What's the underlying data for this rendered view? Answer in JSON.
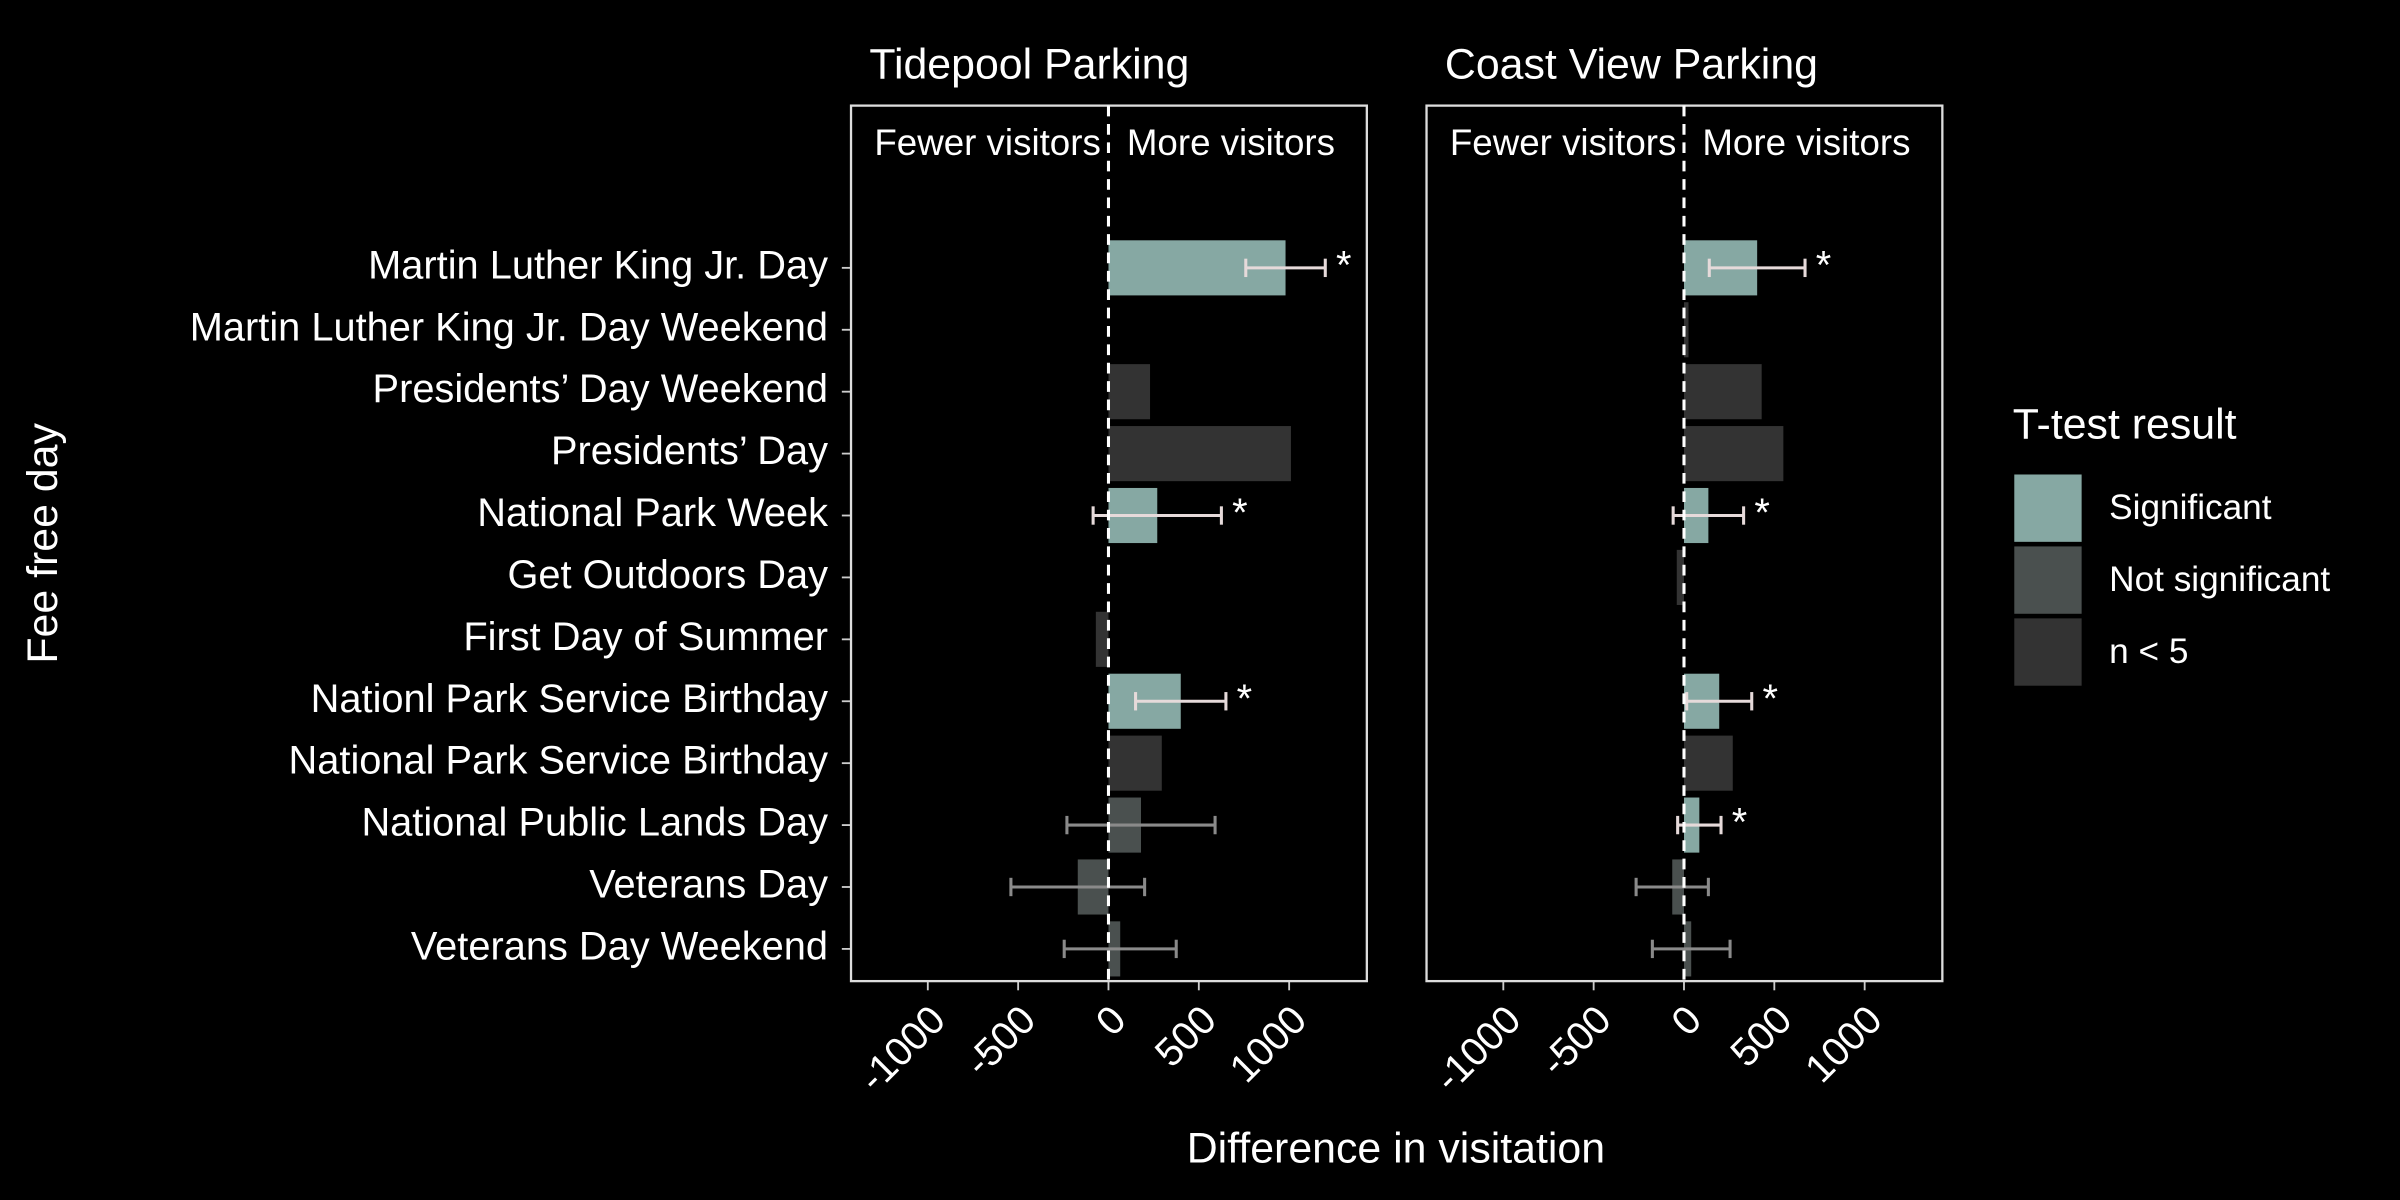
{
  "ylabel": "Fee free day",
  "xlabel": "Difference in visitation",
  "legend_title": "T-test result",
  "chart_data": [
    {
      "type": "bar",
      "title": "Tidepool Parking",
      "categories": [
        "Martin Luther King Jr. Day",
        "Martin Luther King Jr. Day Weekend",
        "Presidents’ Day Weekend",
        "Presidents’ Day",
        "National Park Week",
        "Get Outdoors Day",
        "First Day of Summer",
        "Nationl Park Service Birthday",
        "National Park Service Birthday",
        "National Public Lands Day",
        "Veterans Day",
        "Veterans Day Weekend"
      ],
      "xlim": [
        -1425,
        1430
      ],
      "xticks": [
        -1000,
        -500,
        0,
        500,
        1000
      ],
      "region_labels": [
        "Fewer visitors",
        "More visitors"
      ],
      "series": [
        {
          "name": "Significant",
          "color": "#86a8a3",
          "error_color": "#e6dada",
          "values": [
            980,
            null,
            null,
            null,
            270,
            null,
            null,
            400,
            null,
            null,
            null,
            null
          ],
          "errors": [
            220,
            null,
            null,
            null,
            355,
            null,
            null,
            250,
            null,
            null,
            null,
            null
          ]
        },
        {
          "name": "Not significant",
          "color": "#4a504f",
          "error_color": "#8a8a8a",
          "values": [
            null,
            null,
            null,
            null,
            null,
            null,
            null,
            null,
            null,
            180,
            -170,
            65
          ],
          "errors": [
            null,
            null,
            null,
            null,
            null,
            null,
            null,
            null,
            null,
            410,
            370,
            310
          ]
        },
        {
          "name": "n < 5",
          "color": "#333333",
          "error_color": "#8a8a8a",
          "values": [
            null,
            null,
            230,
            1010,
            null,
            null,
            -70,
            null,
            295,
            null,
            null,
            null
          ],
          "errors": [
            null,
            null,
            null,
            null,
            null,
            null,
            null,
            null,
            null,
            null,
            null,
            null
          ]
        }
      ],
      "annotations": [
        {
          "text": "*",
          "category": 0
        },
        {
          "text": "*",
          "category": 4
        },
        {
          "text": "*",
          "category": 7
        }
      ]
    },
    {
      "type": "bar",
      "title": "Coast View Parking",
      "xlim": [
        -1425,
        1430
      ],
      "xticks": [
        -1000,
        -500,
        0,
        500,
        1000
      ],
      "region_labels": [
        "Fewer visitors",
        "More visitors"
      ],
      "series": [
        {
          "name": "Significant",
          "color": "#86a8a3",
          "error_color": "#e6dada",
          "values": [
            405,
            null,
            null,
            null,
            135,
            null,
            null,
            195,
            null,
            85,
            null,
            null
          ],
          "errors": [
            265,
            null,
            null,
            null,
            195,
            null,
            null,
            180,
            null,
            120,
            null,
            null
          ]
        },
        {
          "name": "Not significant",
          "color": "#4a504f",
          "error_color": "#8a8a8a",
          "values": [
            null,
            null,
            null,
            null,
            null,
            null,
            null,
            null,
            null,
            null,
            -65,
            40
          ],
          "errors": [
            null,
            null,
            null,
            null,
            null,
            null,
            null,
            null,
            null,
            null,
            200,
            215
          ]
        },
        {
          "name": "n < 5",
          "color": "#333333",
          "error_color": "#8a8a8a",
          "values": [
            null,
            25,
            430,
            550,
            null,
            -40,
            null,
            null,
            270,
            null,
            null,
            null
          ],
          "errors": [
            null,
            null,
            null,
            null,
            null,
            null,
            null,
            null,
            null,
            null,
            null,
            null
          ]
        }
      ],
      "annotations": [
        {
          "text": "*",
          "category": 0
        },
        {
          "text": "*",
          "category": 4
        },
        {
          "text": "*",
          "category": 7
        },
        {
          "text": "*",
          "category": 9
        }
      ]
    }
  ]
}
